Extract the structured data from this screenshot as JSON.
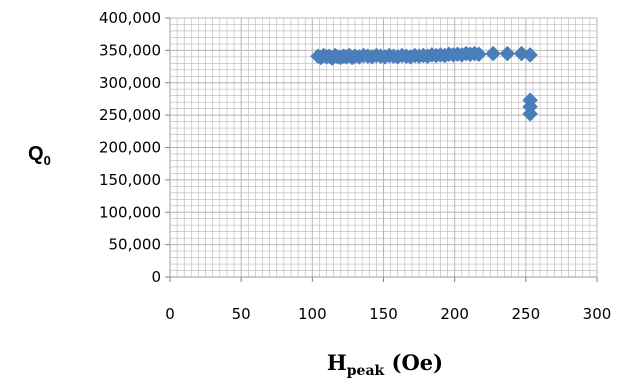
{
  "chart_data": {
    "type": "scatter",
    "xlabel": {
      "main": "H",
      "sub": "peak",
      "suffix": " (Oe)"
    },
    "ylabel": {
      "main": "Q",
      "sub": "0"
    },
    "xlim": [
      0,
      300
    ],
    "ylim": [
      0,
      400000
    ],
    "x_ticks": [
      "0",
      "50",
      "100",
      "150",
      "200",
      "250",
      "300"
    ],
    "y_ticks": [
      "0",
      "50,000",
      "100,000",
      "150,000",
      "200,000",
      "250,000",
      "300,000",
      "350,000",
      "400,000"
    ],
    "grid": "major and minor",
    "marker": "diamond",
    "colors": {
      "marker": "#4a7ebb",
      "grid": "#b8b8b8",
      "axis": "#868686"
    },
    "series": [
      {
        "points": [
          [
            104,
            341000
          ],
          [
            106,
            339000
          ],
          [
            108,
            342000
          ],
          [
            110,
            340000
          ],
          [
            112,
            341000
          ],
          [
            114,
            338000
          ],
          [
            116,
            342000
          ],
          [
            118,
            340000
          ],
          [
            120,
            339000
          ],
          [
            122,
            341000
          ],
          [
            124,
            340000
          ],
          [
            126,
            342000
          ],
          [
            128,
            339000
          ],
          [
            130,
            341000
          ],
          [
            133,
            340000
          ],
          [
            136,
            342000
          ],
          [
            139,
            341000
          ],
          [
            142,
            340000
          ],
          [
            145,
            342000
          ],
          [
            148,
            341000
          ],
          [
            151,
            340000
          ],
          [
            154,
            342000
          ],
          [
            157,
            341000
          ],
          [
            160,
            340000
          ],
          [
            163,
            342000
          ],
          [
            166,
            341000
          ],
          [
            169,
            340000
          ],
          [
            172,
            342000
          ],
          [
            175,
            341000
          ],
          [
            178,
            342000
          ],
          [
            181,
            341000
          ],
          [
            184,
            343000
          ],
          [
            187,
            342000
          ],
          [
            190,
            343000
          ],
          [
            193,
            342000
          ],
          [
            196,
            344000
          ],
          [
            199,
            343000
          ],
          [
            202,
            344000
          ],
          [
            205,
            343000
          ],
          [
            208,
            345000
          ],
          [
            211,
            344000
          ],
          [
            214,
            345000
          ],
          [
            217,
            344000
          ],
          [
            227,
            345000
          ],
          [
            237,
            345000
          ],
          [
            247,
            345000
          ],
          [
            253,
            343000
          ],
          [
            253,
            273000
          ],
          [
            253,
            263000
          ],
          [
            253,
            252000
          ]
        ]
      }
    ]
  }
}
